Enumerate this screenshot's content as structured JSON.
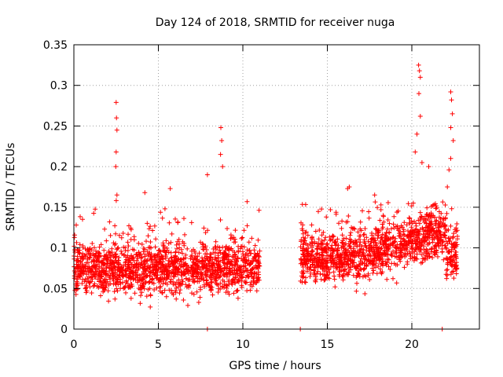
{
  "chart_data": {
    "type": "scatter",
    "title": "Day 124 of 2018, SRMTID for receiver nuga",
    "xlabel": "GPS time / hours",
    "ylabel": "SRMTID / TECUs",
    "xlim": [
      0,
      24
    ],
    "ylim": [
      0,
      0.35
    ],
    "xticks": [
      0,
      5,
      10,
      15,
      20
    ],
    "xtick_labels": [
      "0",
      "5",
      "10",
      "15",
      "20"
    ],
    "yticks": [
      0,
      0.05,
      0.1,
      0.15,
      0.2,
      0.25,
      0.3,
      0.35
    ],
    "ytick_labels": [
      "0",
      "0.05",
      "0.1",
      "0.15",
      "0.2",
      "0.25",
      "0.3",
      "0.35"
    ],
    "grid": true,
    "marker": "plus",
    "series": [
      {
        "name": "SRMTID",
        "color": "#ff0000",
        "segments": [
          {
            "x_start": 0.0,
            "x_end": 11.0,
            "baseline": 0.075,
            "spread": 0.03
          },
          {
            "x_start": 13.4,
            "x_end": 22.7,
            "baseline": 0.09,
            "spread": 0.03
          }
        ],
        "peaks": [
          {
            "x": 2.5,
            "y": 0.279
          },
          {
            "x": 2.52,
            "y": 0.26
          },
          {
            "x": 2.55,
            "y": 0.245
          },
          {
            "x": 2.5,
            "y": 0.218
          },
          {
            "x": 2.48,
            "y": 0.2
          },
          {
            "x": 2.55,
            "y": 0.165
          },
          {
            "x": 8.7,
            "y": 0.248
          },
          {
            "x": 8.75,
            "y": 0.232
          },
          {
            "x": 8.68,
            "y": 0.215
          },
          {
            "x": 8.8,
            "y": 0.2
          },
          {
            "x": 7.9,
            "y": 0.19
          },
          {
            "x": 5.7,
            "y": 0.173
          },
          {
            "x": 4.2,
            "y": 0.168
          },
          {
            "x": 20.4,
            "y": 0.325
          },
          {
            "x": 20.45,
            "y": 0.318
          },
          {
            "x": 20.5,
            "y": 0.31
          },
          {
            "x": 20.42,
            "y": 0.29
          },
          {
            "x": 20.5,
            "y": 0.262
          },
          {
            "x": 20.3,
            "y": 0.24
          },
          {
            "x": 20.2,
            "y": 0.218
          },
          {
            "x": 20.6,
            "y": 0.205
          },
          {
            "x": 22.3,
            "y": 0.292
          },
          {
            "x": 22.35,
            "y": 0.282
          },
          {
            "x": 22.4,
            "y": 0.265
          },
          {
            "x": 22.3,
            "y": 0.248
          },
          {
            "x": 22.45,
            "y": 0.232
          },
          {
            "x": 22.3,
            "y": 0.21
          },
          {
            "x": 22.2,
            "y": 0.196
          },
          {
            "x": 22.1,
            "y": 0.175
          },
          {
            "x": 21.0,
            "y": 0.2
          },
          {
            "x": 16.3,
            "y": 0.175
          },
          {
            "x": 16.2,
            "y": 0.173
          },
          {
            "x": 17.8,
            "y": 0.165
          }
        ],
        "zero_points": [
          {
            "x": 7.9,
            "y": 0.0
          },
          {
            "x": 13.4,
            "y": 0.0
          },
          {
            "x": 21.8,
            "y": 0.0
          }
        ]
      }
    ]
  }
}
